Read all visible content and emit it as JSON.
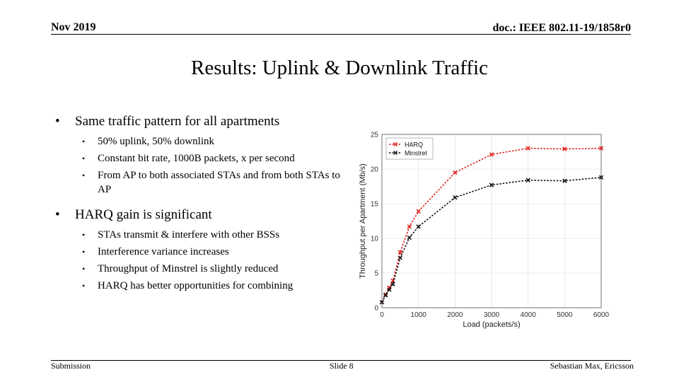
{
  "header": {
    "date": "Nov 2019",
    "doc": "doc.: IEEE 802.11-19/1858r0"
  },
  "title": "Results: Uplink & Downlink Traffic",
  "bullets": [
    {
      "text": "Same traffic pattern for all apartments",
      "sub": [
        "50% uplink, 50% downlink",
        "Constant bit rate, 1000B packets, x per second",
        "From AP to both associated STAs and from both STAs to AP"
      ]
    },
    {
      "text": "HARQ gain is significant",
      "sub": [
        "STAs transmit & interfere with other BSSs",
        "Interference variance increases",
        "Throughput of Minstrel is slightly reduced",
        "HARQ has better opportunities for combining"
      ]
    }
  ],
  "footer": {
    "left": "Submission",
    "center": "Slide 8",
    "right": "Sebastian Max, Ericsson"
  },
  "chart_data": {
    "type": "line",
    "xlabel": "Load (packets/s)",
    "ylabel": "Throughput per Apartment (Mb/s)",
    "xlim": [
      0,
      6000
    ],
    "ylim": [
      0,
      25
    ],
    "xticks": [
      0,
      1000,
      2000,
      3000,
      4000,
      5000,
      6000
    ],
    "yticks": [
      0,
      5,
      10,
      15,
      20,
      25
    ],
    "grid": true,
    "legend": "top-left",
    "series": [
      {
        "name": "HARQ",
        "color": "#e0201b",
        "x": [
          0,
          100,
          200,
          300,
          500,
          750,
          1000,
          2000,
          3000,
          4000,
          5000,
          6000
        ],
        "y": [
          0.8,
          1.9,
          2.9,
          3.9,
          8.0,
          11.7,
          13.9,
          19.5,
          22.1,
          23.0,
          22.9,
          23.0
        ]
      },
      {
        "name": "Minstrel",
        "color": "#111111",
        "x": [
          0,
          100,
          200,
          300,
          500,
          750,
          1000,
          2000,
          3000,
          4000,
          5000,
          6000
        ],
        "y": [
          0.8,
          1.8,
          2.6,
          3.4,
          7.2,
          10.1,
          11.7,
          15.9,
          17.7,
          18.4,
          18.3,
          18.8
        ]
      }
    ]
  }
}
